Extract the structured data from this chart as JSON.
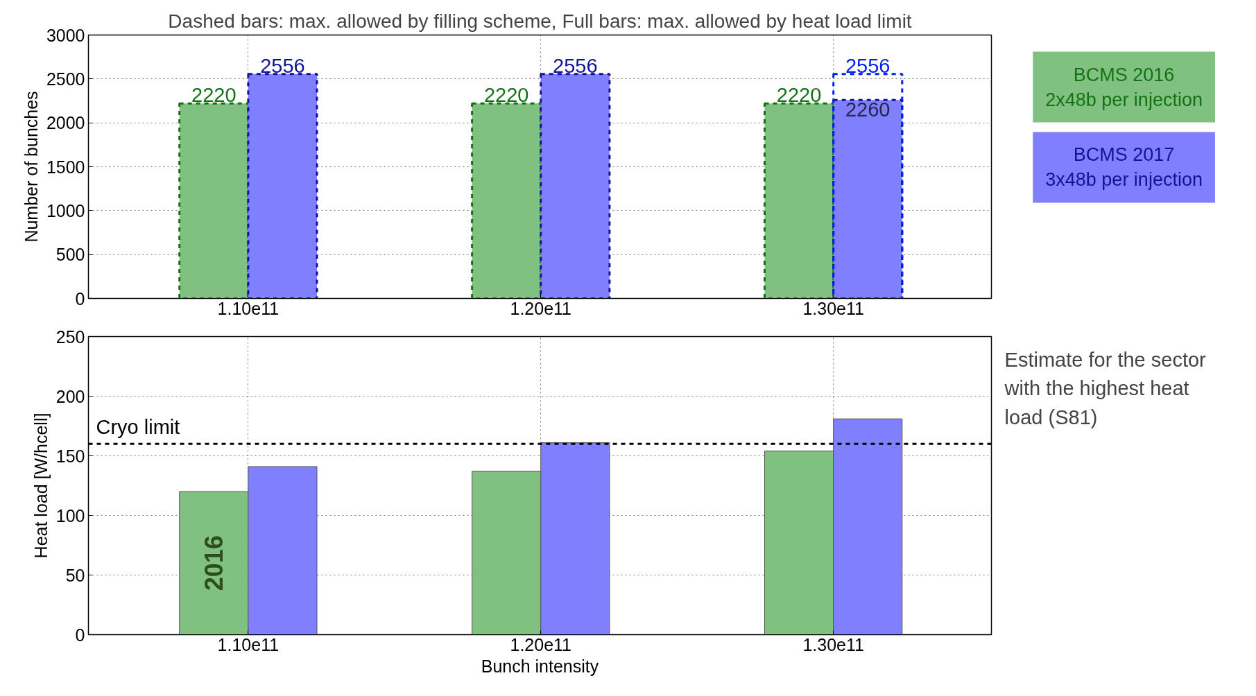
{
  "chart_data": [
    {
      "type": "bar",
      "title": "Dashed bars: max. allowed by filling scheme, Full bars: max. allowed by heat load limit",
      "ylabel": "Number of bunches",
      "categories": [
        "1.10e11",
        "1.20e11",
        "1.30e11"
      ],
      "ylim": [
        0,
        3000
      ],
      "yticks": [
        0,
        500,
        1000,
        1500,
        2000,
        2500,
        3000
      ],
      "grid": true,
      "legend": "top right",
      "series": [
        {
          "name": "BCMS 2016\n2x48b per injection",
          "color": "#80c080",
          "line_style": "dashed",
          "values": [
            2220,
            2220,
            2220
          ],
          "value_labels": [
            "2220",
            "2220",
            "2220"
          ]
        },
        {
          "name": "BCMS 2017\n3x48b per injection",
          "color": "#8080ff",
          "line_style": "dashed",
          "values": [
            2556,
            2556,
            2260
          ],
          "value_labels": [
            "2556",
            "2556",
            "2260"
          ]
        },
        {
          "color": "#0022ee",
          "line_style": "dashed",
          "values": [
            null,
            null,
            2556
          ],
          "value_labels": [
            null,
            null,
            "2556"
          ]
        }
      ]
    },
    {
      "type": "bar",
      "xlabel": "Bunch intensity",
      "ylabel": "Heat load [W/hcell]",
      "categories": [
        "1.10e11",
        "1.20e11",
        "1.30e11"
      ],
      "ylim": [
        0,
        250
      ],
      "yticks": [
        0,
        50,
        100,
        150,
        200,
        250
      ],
      "grid": true,
      "series": [
        {
          "color": "#80c080",
          "values": [
            120,
            137,
            154
          ]
        },
        {
          "color": "#8080ff",
          "values": [
            141,
            161,
            181
          ]
        }
      ],
      "ref_lines": [
        {
          "axis": "y",
          "value": 160,
          "label": "Cryo limit",
          "color": "#000000",
          "line_style": "dashed"
        }
      ],
      "annotations": [
        {
          "text": "2016",
          "x": "1.10e11",
          "y": 60
        },
        "Estimate for the sector\nwith the highest heat\nload (S81)"
      ]
    }
  ]
}
